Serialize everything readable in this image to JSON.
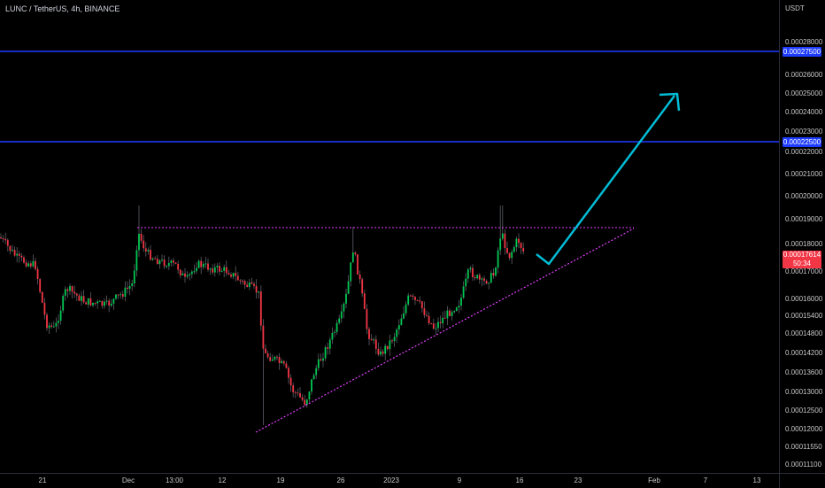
{
  "header": {
    "title": "LUNC / TetherUS, 4h, BINANCE"
  },
  "price_axis": {
    "currency": "USDT",
    "ticks": [
      "0.00028000",
      "0.00026000",
      "0.00025000",
      "0.00024000",
      "0.00023000",
      "0.00022000",
      "0.00021000",
      "0.00020000",
      "0.00019000",
      "0.00018000",
      "0.00017000",
      "0.00016000",
      "0.00015400",
      "0.00014800",
      "0.00014200",
      "0.00013600",
      "0.00013000",
      "0.00012500",
      "0.00012000",
      "0.00011550",
      "0.00011100"
    ],
    "horizontal_lines": [
      {
        "label": "0.00027500",
        "color": "#1e3cff"
      },
      {
        "label": "0.00022500",
        "color": "#1e3cff"
      }
    ],
    "current_price": {
      "label": "0.00017614",
      "countdown": "50:34",
      "color": "#f23645"
    }
  },
  "time_axis": {
    "labels": [
      "21",
      "Dec",
      "13:00",
      "12",
      "19",
      "26",
      "2023",
      "9",
      "16",
      "23",
      "Feb",
      "7",
      "13"
    ]
  },
  "colors": {
    "up": "#00c853",
    "down": "#f23645",
    "wick": "#5d6068",
    "arrow": "#00bcd4",
    "trendline": "#e040fb",
    "level_line": "#1e3cff"
  },
  "drawings": {
    "resistance": "dotted horizontal line (magenta)",
    "support": "dotted ascending trend line (magenta)",
    "projection": "cyan check-mark arrow pointing up"
  }
}
